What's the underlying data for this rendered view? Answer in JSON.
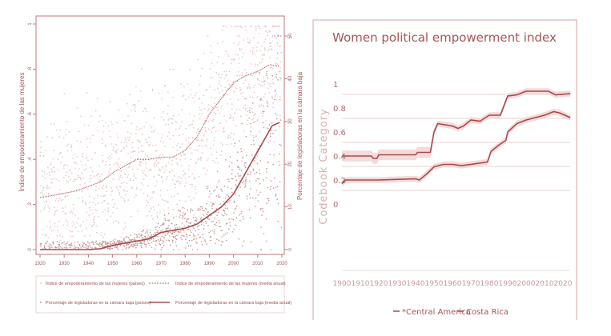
{
  "chart_data": [
    {
      "type": "scatter",
      "title": "",
      "xlabel": "",
      "ylabel": "Índice de empoderamiento de las mujeres",
      "ylabel_right": "Porcentaje de legisladoras en la cámara baja",
      "xlim": [
        1920,
        2020
      ],
      "ylim": [
        0,
        1
      ],
      "ylim_right": [
        0,
        50
      ],
      "x_ticks": [
        "1920",
        "1930",
        "1940",
        "1950",
        "1960",
        "1970",
        "1980",
        "1990",
        "2000",
        "2010",
        "2020"
      ],
      "y_ticks": [
        "0",
        ".2",
        ".4",
        ".6",
        ".8",
        "1"
      ],
      "y_ticks_right": [
        "0",
        "10",
        "20",
        "30",
        "40",
        "50"
      ],
      "legend": [
        "Índice de empoderamiento de las mujeres (países)",
        "Índice de empoderamiento de las mujeres (media anual)",
        "Porcentaje de legisladoras en la cámara baja (países)",
        "Porcentaje de legisladoras en la cámara baja (media anual)"
      ],
      "legend_position": "bottom",
      "series": [
        {
          "name": "Índice de empoderamiento de las mujeres (media anual)",
          "axis": "left",
          "style": "dotted",
          "x": [
            1920,
            1925,
            1930,
            1935,
            1940,
            1945,
            1950,
            1955,
            1960,
            1965,
            1970,
            1975,
            1980,
            1985,
            1990,
            1995,
            2000,
            2005,
            2010,
            2015,
            2020
          ],
          "y": [
            0.23,
            0.24,
            0.25,
            0.26,
            0.28,
            0.3,
            0.34,
            0.37,
            0.4,
            0.4,
            0.41,
            0.41,
            0.44,
            0.5,
            0.6,
            0.67,
            0.74,
            0.77,
            0.79,
            0.82,
            0.81
          ]
        },
        {
          "name": "Porcentaje de legisladoras en la cámara baja (media anual)",
          "axis": "right",
          "style": "solid",
          "x": [
            1920,
            1930,
            1940,
            1945,
            1950,
            1955,
            1960,
            1965,
            1970,
            1975,
            1980,
            1985,
            1990,
            1995,
            2000,
            2005,
            2010,
            2013,
            2016,
            2020
          ],
          "y": [
            0,
            0,
            0,
            0.2,
            1,
            1.5,
            2,
            2.5,
            4,
            4.5,
            5,
            6,
            8,
            10,
            13,
            18,
            23,
            26,
            29,
            30
          ]
        }
      ]
    },
    {
      "type": "line",
      "title": "Women political empowerment index",
      "xlabel": "",
      "ylabel": "Codebook Category",
      "xlim": [
        1900,
        2024
      ],
      "ylim": [
        0,
        1
      ],
      "x_ticks": [
        "1900",
        "1910",
        "1920",
        "1930",
        "1940",
        "1950",
        "1960",
        "1970",
        "1980",
        "1990",
        "2000",
        "2010",
        "2020"
      ],
      "y_ticks": [
        "0",
        "0.2",
        "0.4",
        "0.6",
        "0.8",
        "1"
      ],
      "legend": [
        "*Central America",
        "Costa Rica"
      ],
      "legend_position": "bottom",
      "series": [
        {
          "name": "*Central America",
          "x": [
            1900,
            1902,
            1920,
            1940,
            1942,
            1946,
            1950,
            1955,
            1960,
            1965,
            1970,
            1979,
            1981,
            1986,
            1989,
            1990,
            1995,
            2000,
            2005,
            2010,
            2015,
            2018,
            2024
          ],
          "y": [
            0.17,
            0.2,
            0.2,
            0.21,
            0.2,
            0.25,
            0.31,
            0.33,
            0.33,
            0.32,
            0.33,
            0.35,
            0.44,
            0.5,
            0.53,
            0.6,
            0.67,
            0.7,
            0.72,
            0.74,
            0.77,
            0.76,
            0.72
          ]
        },
        {
          "name": "Costa Rica",
          "x": [
            1900,
            1916,
            1917,
            1919,
            1920,
            1940,
            1941,
            1948,
            1950,
            1952,
            1960,
            1963,
            1966,
            1970,
            1975,
            1980,
            1986,
            1990,
            1995,
            2000,
            2012,
            2016,
            2024
          ],
          "y": [
            0.4,
            0.4,
            0.38,
            0.38,
            0.41,
            0.41,
            0.43,
            0.43,
            0.6,
            0.67,
            0.65,
            0.63,
            0.65,
            0.7,
            0.69,
            0.74,
            0.74,
            0.9,
            0.91,
            0.94,
            0.94,
            0.91,
            0.92
          ]
        }
      ]
    }
  ],
  "colors": {
    "line": "#a84a4a",
    "band": "#f2d3d3",
    "scatter_light": "#e9cccc",
    "scatter_dark": "#c79595"
  }
}
